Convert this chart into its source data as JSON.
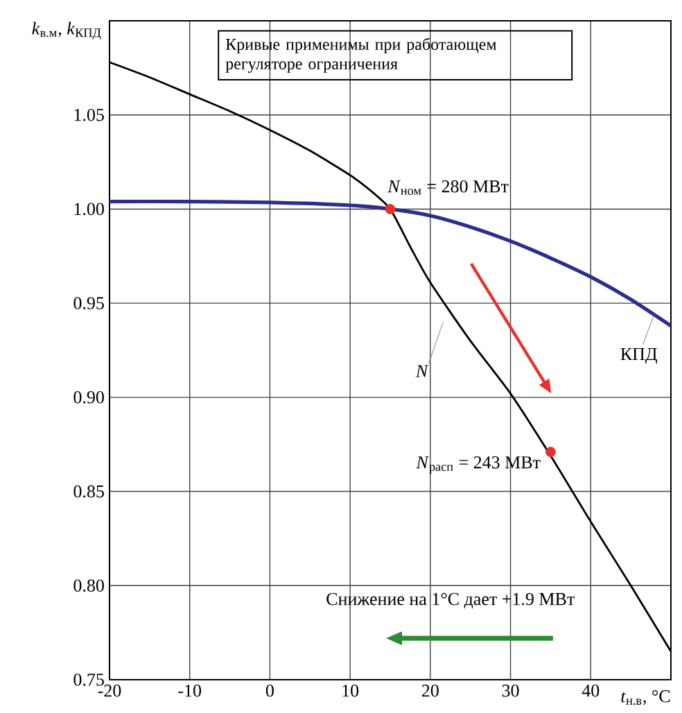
{
  "chart_data": {
    "type": "line",
    "xlabel": "*t*$_{н.в}$, °C",
    "ylabel": "*k*$_{в.м}$, *k*$_{КПД}$",
    "xlim": [
      -20,
      50
    ],
    "ylim": [
      0.75,
      1.1
    ],
    "xticks": [
      -20,
      -10,
      0,
      10,
      20,
      30,
      40
    ],
    "yticks": [
      {
        "value": 0.75,
        "label": "0.75"
      },
      {
        "value": 0.8,
        "label": "0.80"
      },
      {
        "value": 0.85,
        "label": "0.85"
      },
      {
        "value": 0.9,
        "label": "0.90"
      },
      {
        "value": 0.95,
        "label": "0.95"
      },
      {
        "value": 1.0,
        "label": "1.00"
      },
      {
        "value": 1.05,
        "label": "1.05"
      }
    ],
    "grid": true,
    "line_style": "solid",
    "series": [
      {
        "name": "*N*",
        "color": "#000000",
        "x": [
          -20,
          -15,
          -10,
          -5,
          0,
          5,
          10,
          12.5,
          15,
          17.5,
          20,
          25,
          30,
          35,
          40,
          45,
          50
        ],
        "values": [
          1.078,
          1.07,
          1.061,
          1.052,
          1.042,
          1.031,
          1.018,
          1.01,
          1.0,
          0.98,
          0.961,
          0.93,
          0.902,
          0.869,
          0.834,
          0.8,
          0.765
        ]
      },
      {
        "name": "КПД",
        "color": "#2b2e8c",
        "x": [
          -20,
          -10,
          0,
          10,
          15,
          20,
          25,
          30,
          35,
          40,
          45,
          50
        ],
        "values": [
          1.004,
          1.004,
          1.0035,
          1.002,
          1.0,
          0.9965,
          0.9905,
          0.983,
          0.974,
          0.964,
          0.952,
          0.938
        ]
      },
      {
        "type": "scatter",
        "color": "#e8312a",
        "x": [
          15,
          35
        ],
        "values": [
          1.0,
          0.871
        ]
      }
    ],
    "annotations": [
      "Кривые применимы при работающем регуляторе ограничения",
      {
        "text": "*N*$_{ном}$ = 280 МВт",
        "x": 15,
        "y": 1.0
      },
      {
        "text": "*N*$_{расп}$ = 243 МВт",
        "x": 35,
        "y": 0.871
      },
      "Снижение на 1°C дает +1.9 МВт"
    ]
  }
}
